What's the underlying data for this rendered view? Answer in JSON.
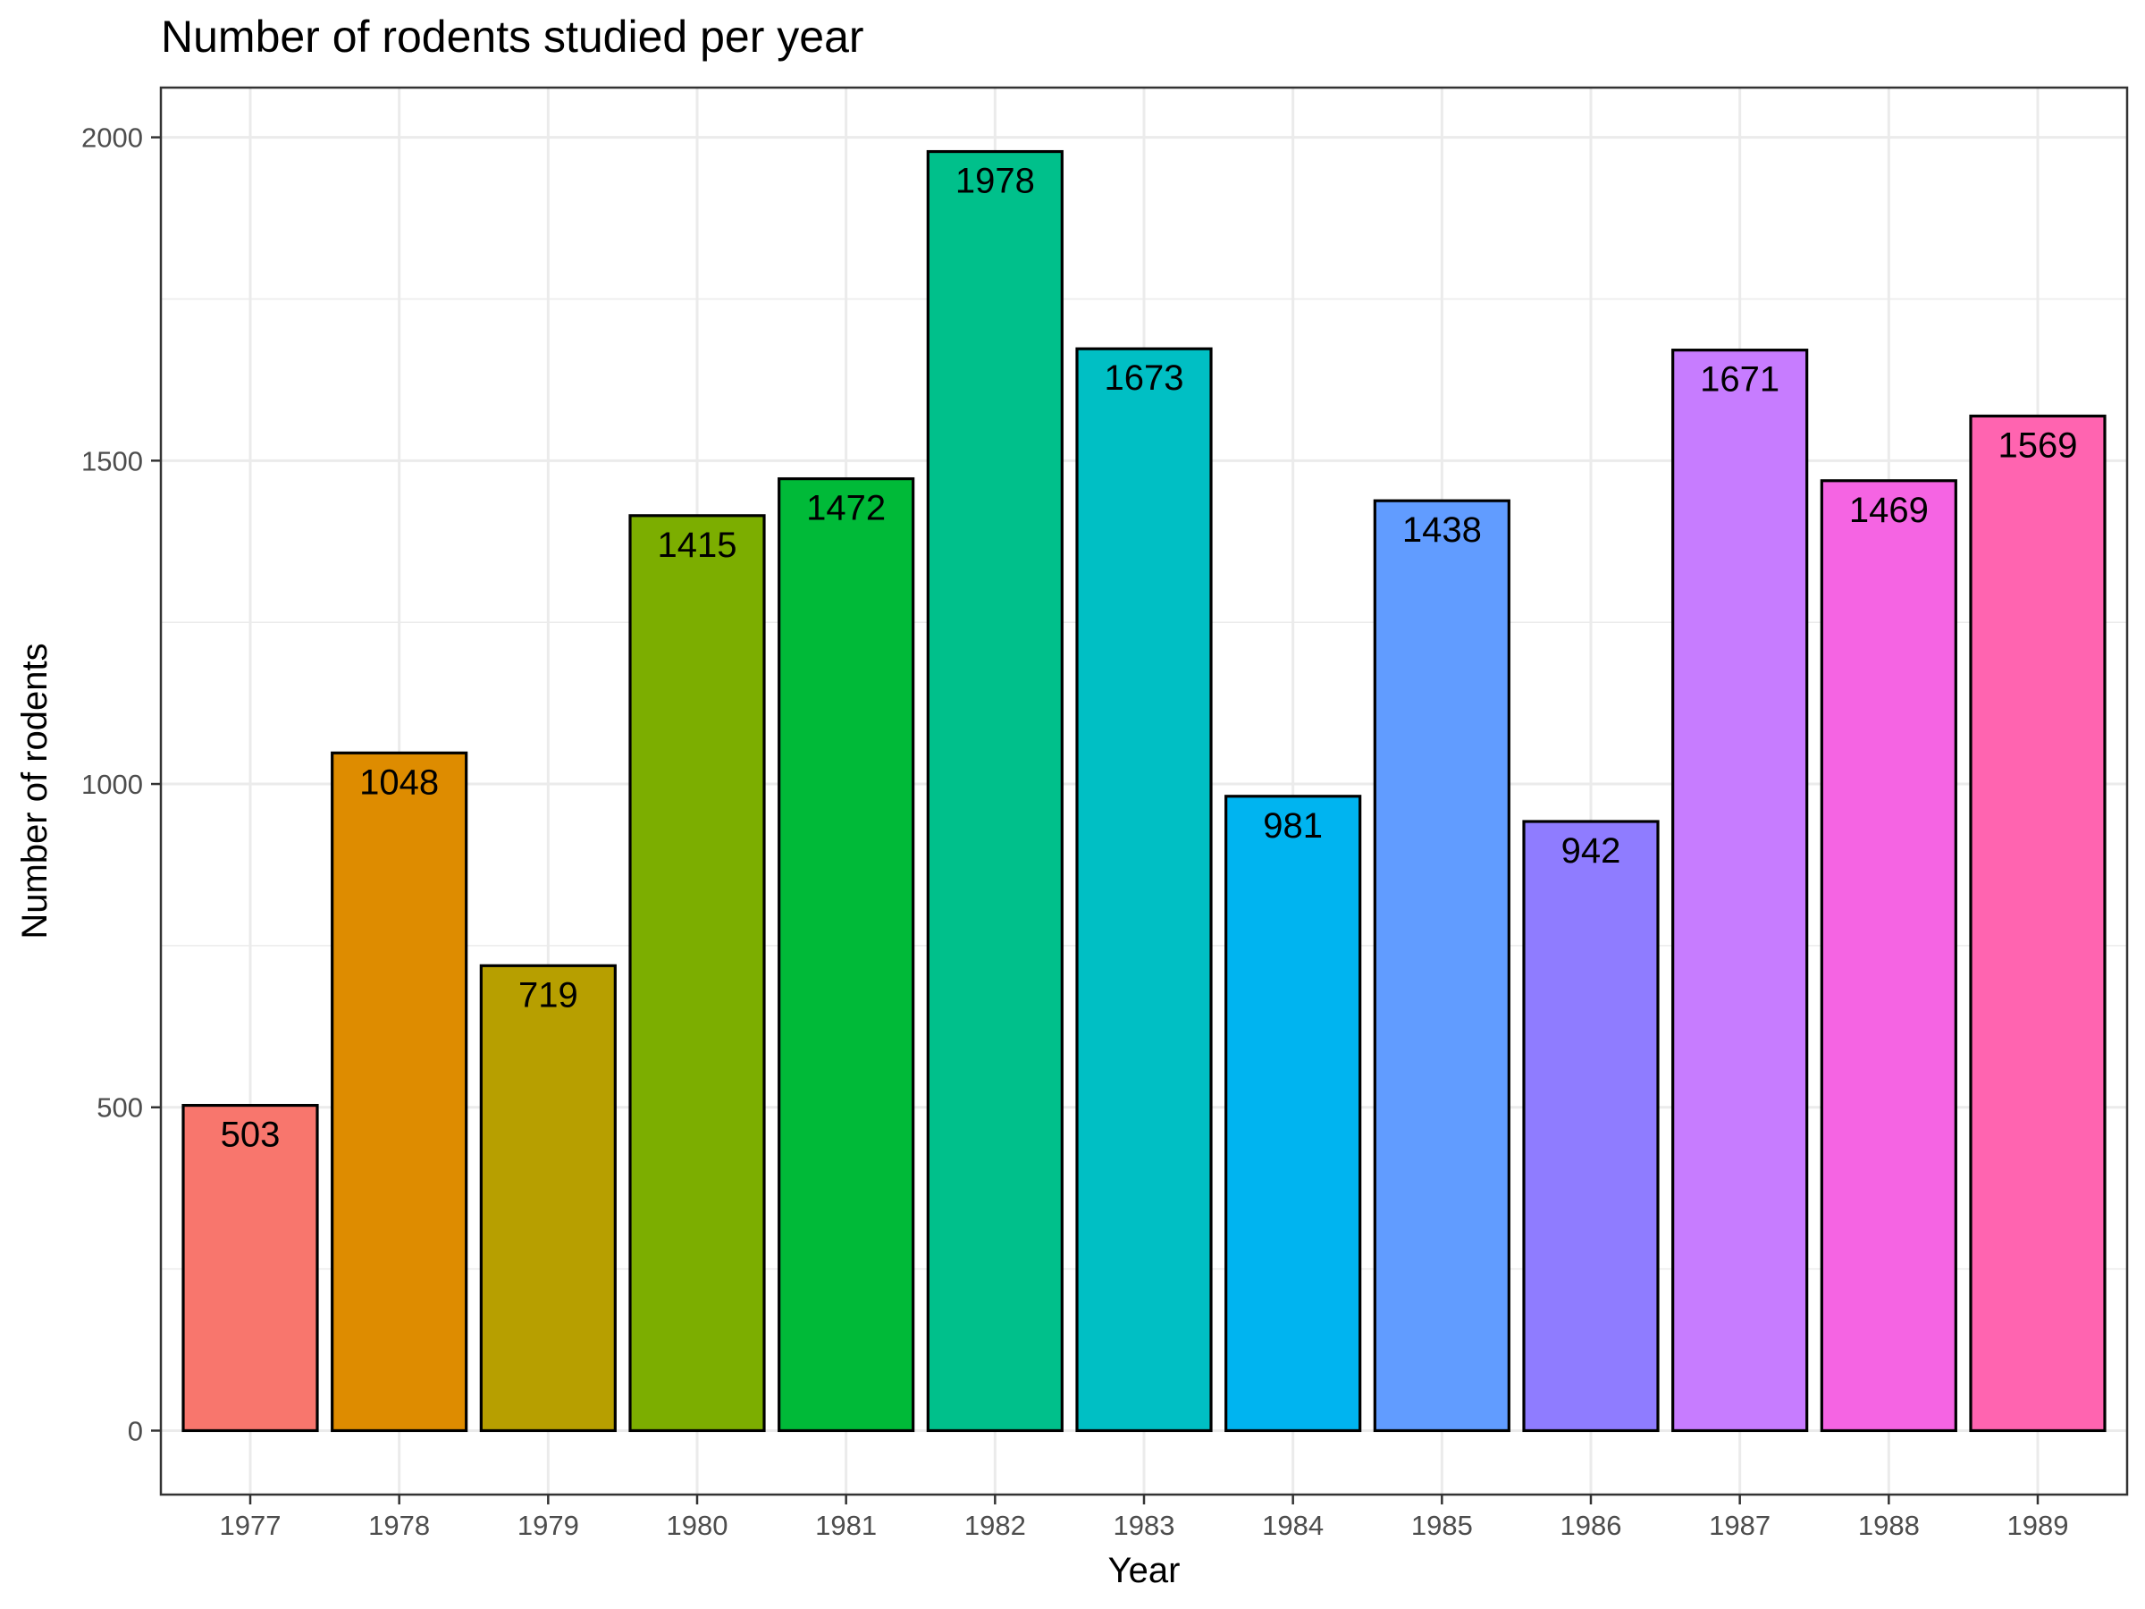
{
  "chart_data": {
    "type": "bar",
    "title": "Number of rodents studied per year",
    "xlabel": "Year",
    "ylabel": "Number of rodents",
    "categories": [
      "1977",
      "1978",
      "1979",
      "1980",
      "1981",
      "1982",
      "1983",
      "1984",
      "1985",
      "1986",
      "1987",
      "1988",
      "1989"
    ],
    "values": [
      503,
      1048,
      719,
      1415,
      1472,
      1978,
      1673,
      981,
      1438,
      942,
      1671,
      1469,
      1569
    ],
    "data_labels": [
      "503",
      "1048",
      "719",
      "1415",
      "1472",
      "1978",
      "1673",
      "981",
      "1438",
      "942",
      "1671",
      "1469",
      "1569"
    ],
    "colors": [
      "#F8766D",
      "#DE8C00",
      "#B79F00",
      "#7CAE00",
      "#00BA38",
      "#00C08B",
      "#00BFC4",
      "#00B4F0",
      "#619CFF",
      "#8F7CFF",
      "#C77CFF",
      "#F564E3",
      "#FF64B0"
    ],
    "ylim": [
      -98.9,
      2076.9
    ],
    "y_ticks": [
      0,
      500,
      1000,
      1500,
      2000
    ],
    "y_tick_labels": [
      "0",
      "500",
      "1000",
      "1500",
      "2000"
    ],
    "grid": true,
    "legend": "none",
    "theme": "bw"
  }
}
